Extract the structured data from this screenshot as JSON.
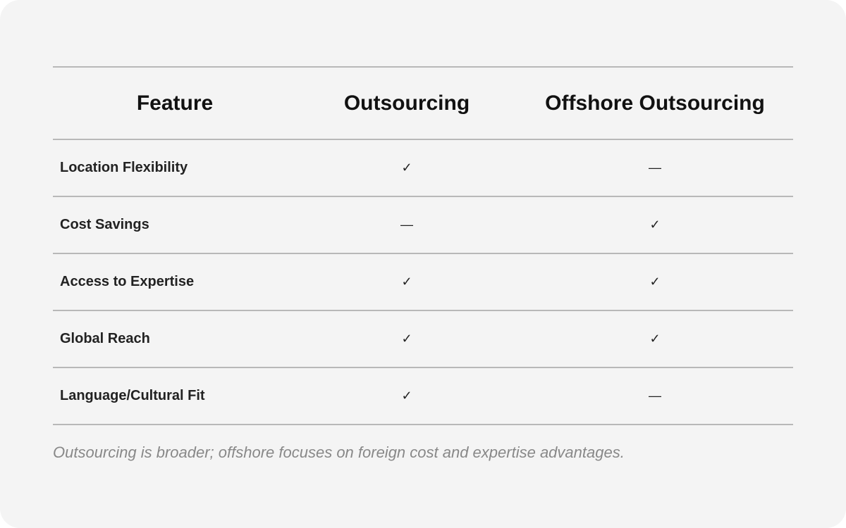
{
  "table": {
    "headers": [
      "Feature",
      "Outsourcing",
      "Offshore Outsourcing"
    ],
    "rows": [
      {
        "feature": "Location Flexibility",
        "outsourcing": "✓",
        "offshore": "—"
      },
      {
        "feature": "Cost Savings",
        "outsourcing": "—",
        "offshore": "✓"
      },
      {
        "feature": "Access to Expertise",
        "outsourcing": "✓",
        "offshore": "✓"
      },
      {
        "feature": "Global Reach",
        "outsourcing": "✓",
        "offshore": "✓"
      },
      {
        "feature": "Language/Cultural Fit",
        "outsourcing": "✓",
        "offshore": "—"
      }
    ]
  },
  "note": "Outsourcing is broader; offshore focuses on foreign cost and expertise advantages."
}
